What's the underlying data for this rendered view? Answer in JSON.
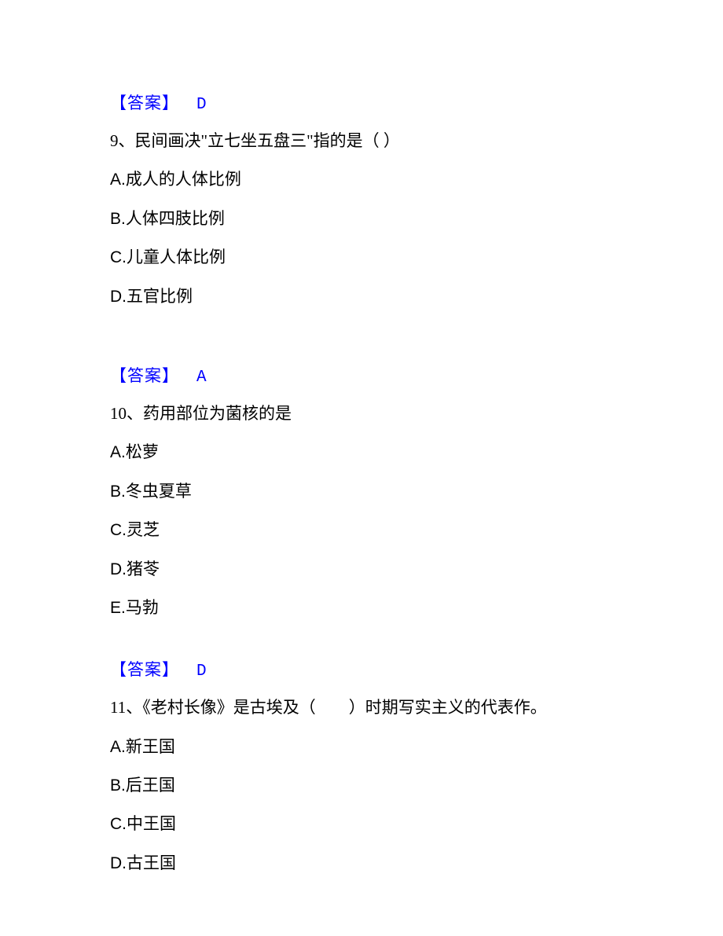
{
  "styles": {
    "answer_color": "#0000ff",
    "text_color": "#000000",
    "background_color": "#ffffff",
    "body_fontsize": 21,
    "font_family": "SimSun"
  },
  "blocks": [
    {
      "type": "answer",
      "label": "【答案】",
      "value": "D"
    },
    {
      "type": "question",
      "number": "9、",
      "text": "民间画决\"立七坐五盘三\"指的是（  ）",
      "options": [
        {
          "letter": "A.",
          "text": "成人的人体比例"
        },
        {
          "letter": "B.",
          "text": "人体四肢比例"
        },
        {
          "letter": "C.",
          "text": "儿童人体比例"
        },
        {
          "letter": "D.",
          "text": "五官比例"
        }
      ]
    },
    {
      "type": "answer",
      "label": "【答案】",
      "value": "A"
    },
    {
      "type": "question",
      "number": "10、",
      "text": "药用部位为菌核的是",
      "options": [
        {
          "letter": "A.",
          "text": "松萝"
        },
        {
          "letter": "B.",
          "text": "冬虫夏草"
        },
        {
          "letter": "C.",
          "text": "灵芝"
        },
        {
          "letter": "D.",
          "text": "猪苓"
        },
        {
          "letter": "E.",
          "text": "马勃"
        }
      ]
    },
    {
      "type": "answer",
      "label": "【答案】",
      "value": "D"
    },
    {
      "type": "question",
      "number": "11、",
      "text": "《老村长像》是古埃及（　　）时期写实主义的代表作。",
      "options": [
        {
          "letter": "A.",
          "text": "新王国"
        },
        {
          "letter": "B.",
          "text": "后王国"
        },
        {
          "letter": "C.",
          "text": "中王国"
        },
        {
          "letter": "D.",
          "text": "古王国"
        }
      ]
    }
  ]
}
